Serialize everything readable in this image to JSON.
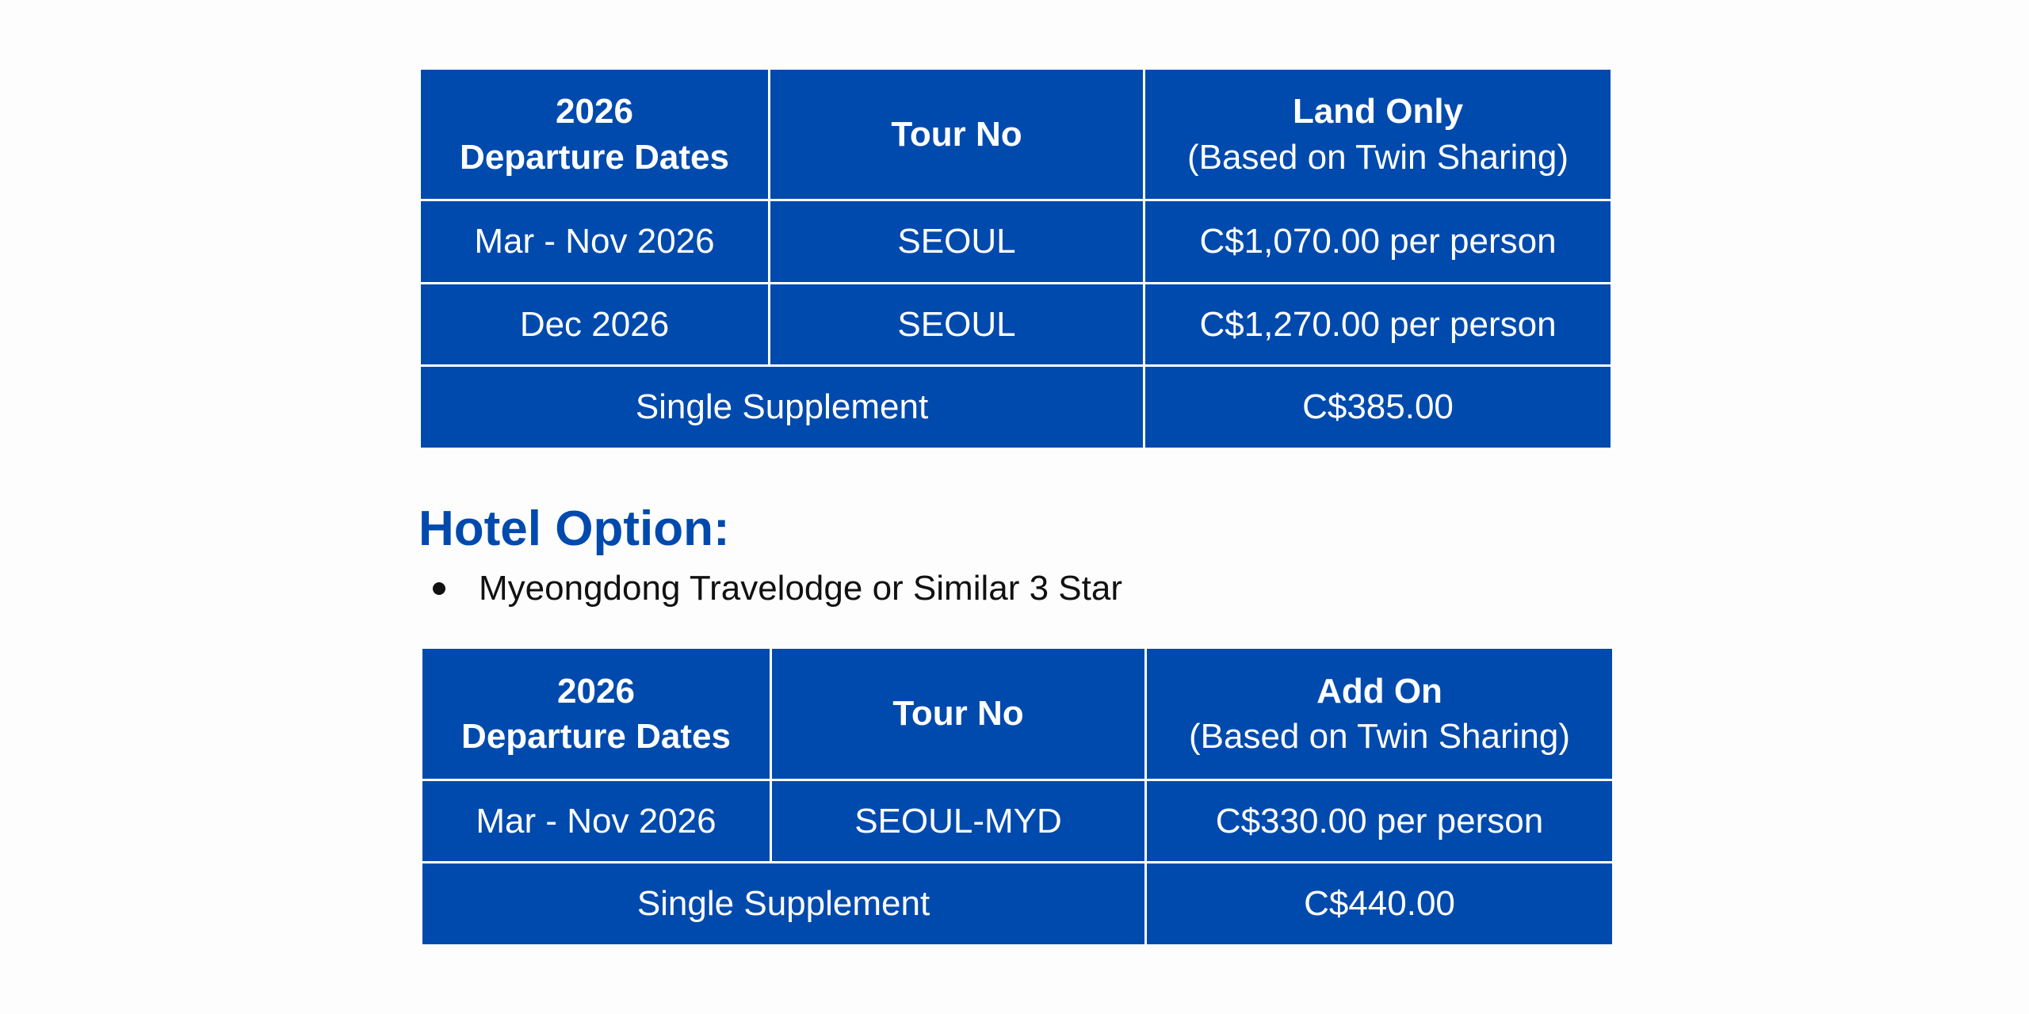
{
  "land_table": {
    "headers": [
      {
        "line1": "2026",
        "line2": "Departure Dates"
      },
      {
        "line1": "Tour No"
      },
      {
        "line1": "Land Only",
        "line2": "(Based on Twin Sharing)"
      }
    ],
    "rows": [
      {
        "dates": "Mar - Nov 2026",
        "tour": "SEOUL",
        "price": "C$1,070.00 per person"
      },
      {
        "dates": "Dec 2026",
        "tour": "SEOUL",
        "price": "C$1,270.00 per person"
      }
    ],
    "supplement": {
      "label": "Single Supplement",
      "price": "C$385.00"
    }
  },
  "hotel": {
    "heading": "Hotel Option:",
    "items": [
      "Myeongdong Travelodge or Similar 3 Star"
    ]
  },
  "addon_table": {
    "headers": [
      {
        "line1": "2026",
        "line2": "Departure Dates"
      },
      {
        "line1": "Tour No"
      },
      {
        "line1": "Add On",
        "line2": "(Based on Twin Sharing)"
      }
    ],
    "rows": [
      {
        "dates": "Mar - Nov 2026",
        "tour": "SEOUL-MYD",
        "price": "C$330.00 per person"
      }
    ],
    "supplement": {
      "label": "Single Supplement",
      "price": "C$440.00"
    }
  },
  "colors": {
    "brand": "#004aad",
    "background": "#fdfdfd"
  }
}
